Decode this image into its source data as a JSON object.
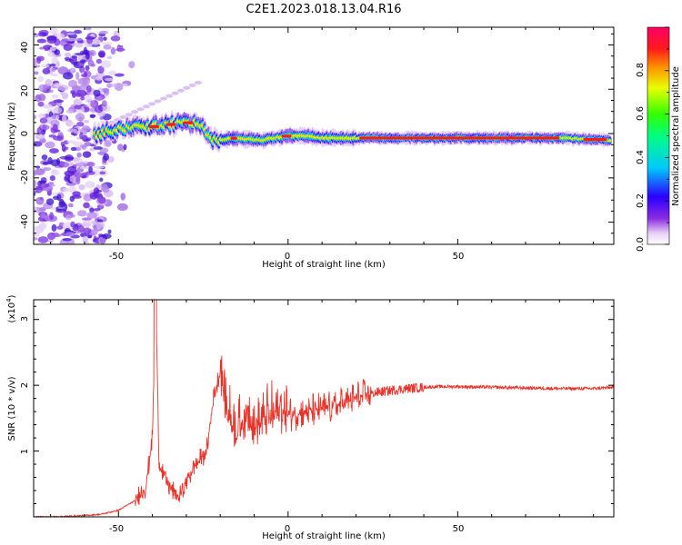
{
  "title": "C2E1.2023.018.13.04.R16",
  "colors": {
    "line": "#e8332a",
    "axis": "#000000",
    "track": "#1b6fd6"
  },
  "colorbar": {
    "label": "Normalized spectral amplitude",
    "range": [
      0,
      1
    ],
    "ticks": [
      "0.0",
      "0.2",
      "0.4",
      "0.6",
      "0.8"
    ]
  },
  "chart_data": [
    {
      "type": "heatmap",
      "xlabel": "Height of straight line (km)",
      "ylabel": "Frequency (Hz)",
      "xlim": [
        -75,
        96
      ],
      "ylim": [
        -50,
        48
      ],
      "xticks": [
        "-50",
        "0",
        "50"
      ],
      "yticks": [
        "40",
        "20",
        "0",
        "-20",
        "-40"
      ],
      "ridge": [
        [
          -57,
          -1
        ],
        [
          -50,
          2
        ],
        [
          -45,
          3
        ],
        [
          -40,
          3
        ],
        [
          -35,
          4
        ],
        [
          -30,
          5
        ],
        [
          -26,
          4
        ],
        [
          -22,
          -3
        ],
        [
          -15,
          -2
        ],
        [
          -8,
          -3
        ],
        [
          0,
          -1
        ],
        [
          5,
          -1
        ],
        [
          10,
          -2
        ],
        [
          20,
          -2
        ],
        [
          40,
          -2
        ],
        [
          60,
          -2
        ],
        [
          80,
          -2
        ],
        [
          95,
          -3
        ]
      ]
    },
    {
      "type": "line",
      "xlabel": "Height of straight line (km)",
      "ylabel": "SNR (10 * v/v)",
      "yscale_label": "(x10",
      "yscale_exp": "4",
      "yscale_close": ")",
      "xlim": [
        -75,
        96
      ],
      "ylim": [
        0,
        3.3
      ],
      "xticks": [
        "-50",
        "0",
        "50"
      ],
      "yticks": [
        "3",
        "2",
        "1"
      ],
      "series": [
        {
          "points": [
            [
              -75,
              0.0
            ],
            [
              -70,
              0.0
            ],
            [
              -65,
              0.01
            ],
            [
              -60,
              0.02
            ],
            [
              -55,
              0.04
            ],
            [
              -50,
              0.1
            ],
            [
              -45,
              0.25
            ],
            [
              -42,
              0.45
            ],
            [
              -40,
              1.2
            ],
            [
              -39,
              3.3
            ],
            [
              -38,
              0.8
            ],
            [
              -35,
              0.45
            ],
            [
              -32,
              0.3
            ],
            [
              -30,
              0.55
            ],
            [
              -27,
              0.8
            ],
            [
              -24,
              1.0
            ],
            [
              -22,
              1.8
            ],
            [
              -20,
              2.2
            ],
            [
              -18,
              1.5
            ],
            [
              -15,
              1.2
            ],
            [
              -12,
              1.5
            ],
            [
              -10,
              1.3
            ],
            [
              -5,
              1.45
            ],
            [
              0,
              1.55
            ],
            [
              5,
              1.6
            ],
            [
              10,
              1.65
            ],
            [
              15,
              1.7
            ],
            [
              20,
              1.8
            ],
            [
              25,
              1.88
            ],
            [
              30,
              1.92
            ],
            [
              35,
              1.95
            ],
            [
              40,
              1.97
            ],
            [
              45,
              1.98
            ],
            [
              50,
              1.98
            ],
            [
              60,
              1.97
            ],
            [
              70,
              1.96
            ],
            [
              80,
              1.95
            ],
            [
              90,
              1.95
            ],
            [
              96,
              1.97
            ]
          ]
        }
      ]
    }
  ]
}
